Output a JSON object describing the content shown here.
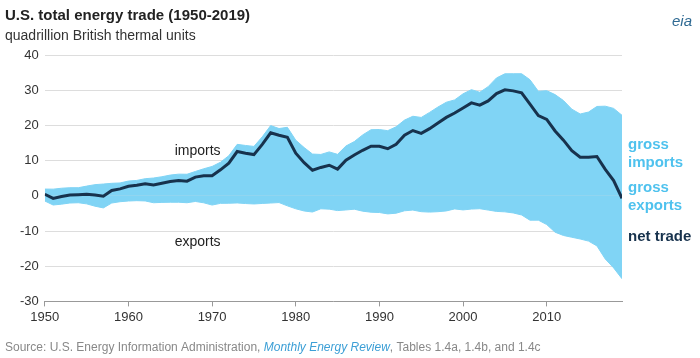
{
  "chart_data": {
    "type": "area",
    "title": "U.S. total energy trade (1950-2019)",
    "subtitle": "quadrillion British thermal units",
    "source": "Source: U.S. Energy Information Administration, Monthly Energy Review, Tables 1.4a, 1.4b, and 1.4c",
    "source_link": "Monthly Energy Review",
    "logo": "eia",
    "x": [
      1950,
      1951,
      1952,
      1953,
      1954,
      1955,
      1956,
      1957,
      1958,
      1959,
      1960,
      1961,
      1962,
      1963,
      1964,
      1965,
      1966,
      1967,
      1968,
      1969,
      1970,
      1971,
      1972,
      1973,
      1974,
      1975,
      1976,
      1977,
      1978,
      1979,
      1980,
      1981,
      1982,
      1983,
      1984,
      1985,
      1986,
      1987,
      1988,
      1989,
      1990,
      1991,
      1992,
      1993,
      1994,
      1995,
      1996,
      1997,
      1998,
      1999,
      2000,
      2001,
      2002,
      2003,
      2004,
      2005,
      2006,
      2007,
      2008,
      2009,
      2010,
      2011,
      2012,
      2013,
      2014,
      2015,
      2016,
      2017,
      2018,
      2019
    ],
    "series": [
      {
        "name": "gross imports",
        "type": "area",
        "color": "#80d4f5",
        "values": [
          1.91,
          1.89,
          2.15,
          2.3,
          2.3,
          2.75,
          3.17,
          3.34,
          3.55,
          3.65,
          4.19,
          4.37,
          4.86,
          5.05,
          5.42,
          5.89,
          6.15,
          6.12,
          6.91,
          7.68,
          8.34,
          9.53,
          11.39,
          14.61,
          14.3,
          14.03,
          16.76,
          19.95,
          19.11,
          19.46,
          15.8,
          13.72,
          11.86,
          11.75,
          12.47,
          11.78,
          14.15,
          15.4,
          17.3,
          18.77,
          18.82,
          18.51,
          19.6,
          21.5,
          22.6,
          22.26,
          23.7,
          25.22,
          26.58,
          27.25,
          28.97,
          30.16,
          29.41,
          31.01,
          33.49,
          34.66,
          34.68,
          34.68,
          32.97,
          29.69,
          29.87,
          28.75,
          27.07,
          24.62,
          23.24,
          23.79,
          25.38,
          25.46,
          24.83,
          22.87
        ]
      },
      {
        "name": "gross exports",
        "type": "area",
        "color": "#80d4f5",
        "values": [
          -1.47,
          -2.62,
          -2.37,
          -2.05,
          -1.97,
          -2.29,
          -2.95,
          -3.44,
          -2.05,
          -1.68,
          -1.48,
          -1.38,
          -1.46,
          -1.97,
          -1.87,
          -1.83,
          -1.83,
          -1.97,
          -1.61,
          -1.99,
          -2.63,
          -2.15,
          -2.12,
          -2.03,
          -2.2,
          -2.32,
          -2.17,
          -2.05,
          -1.92,
          -2.86,
          -3.69,
          -4.31,
          -4.61,
          -3.69,
          -3.79,
          -4.2,
          -4.02,
          -3.81,
          -4.37,
          -4.66,
          -4.75,
          -5.14,
          -4.94,
          -4.26,
          -4.06,
          -4.51,
          -4.63,
          -4.51,
          -4.3,
          -3.72,
          -4.01,
          -3.77,
          -3.67,
          -4.05,
          -4.43,
          -4.56,
          -4.87,
          -5.45,
          -6.93,
          -6.92,
          -8.17,
          -10.34,
          -11.27,
          -11.78,
          -12.27,
          -12.87,
          -14.23,
          -17.96,
          -20.48,
          -23.57
        ]
      },
      {
        "name": "net trade",
        "type": "line",
        "color": "#17324d",
        "values": [
          0.44,
          -0.73,
          -0.22,
          0.25,
          0.33,
          0.46,
          0.22,
          -0.1,
          1.5,
          1.97,
          2.71,
          2.99,
          3.4,
          3.08,
          3.55,
          4.06,
          4.32,
          4.15,
          5.3,
          5.69,
          5.71,
          7.38,
          9.27,
          12.58,
          12.1,
          11.71,
          14.59,
          17.9,
          17.19,
          16.6,
          12.11,
          9.41,
          7.25,
          8.06,
          8.68,
          7.58,
          10.13,
          11.59,
          12.93,
          14.11,
          14.07,
          13.37,
          14.66,
          17.24,
          18.54,
          17.75,
          19.07,
          20.71,
          22.28,
          23.53,
          24.96,
          26.39,
          25.74,
          26.96,
          29.06,
          30.1,
          29.81,
          29.23,
          26.04,
          22.77,
          21.7,
          18.41,
          15.8,
          12.84,
          10.97,
          10.92,
          11.15,
          7.5,
          4.35,
          -0.7
        ]
      }
    ],
    "annotations": [
      {
        "text": "imports"
      },
      {
        "text": "exports"
      }
    ],
    "xlim": [
      1950,
      2019
    ],
    "xticks": [
      1950,
      1960,
      1970,
      1980,
      1990,
      2000,
      2010
    ],
    "ylim": [
      -30,
      40
    ],
    "yticks": [
      -30,
      -20,
      -10,
      0,
      10,
      20,
      30,
      40
    ],
    "grid": "y",
    "legend": "right"
  }
}
